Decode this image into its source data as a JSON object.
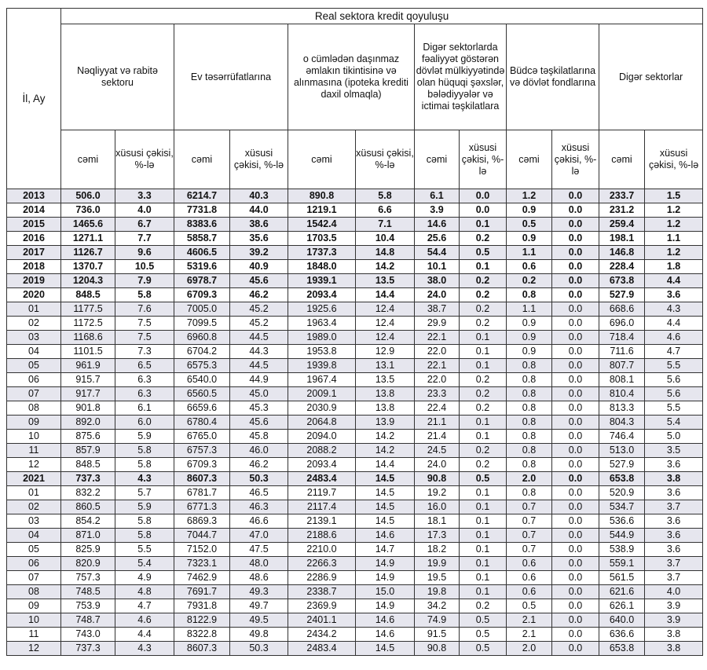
{
  "table": {
    "row_header": "İl, Ay",
    "title": "Real sektora kredit qoyuluşu",
    "groups": [
      "Nəqliyyat və rabitə sektoru",
      "Ev təsərrüfatlarına",
      "o cümlədən daşınmaz əmlakın tikintisinə və alınmasına (ipoteka krediti daxil olmaqla)",
      "Digər sektorlarda fəaliyyət göstərən dövlət mülkiyyətində olan hüquqi şəxslər, bələdiyyələr və ictimai təşkilatlara",
      "Büdcə təşkilatlarına və dövlət fondlarına",
      "Digər sektorlar"
    ],
    "sub_total": "cəmi",
    "sub_share": "xüsusi çəkisi, %-lə",
    "rows": [
      {
        "label": "2013",
        "bold": true,
        "values": [
          "506.0",
          "3.3",
          "6214.7",
          "40.3",
          "890.8",
          "5.8",
          "6.1",
          "0.0",
          "1.2",
          "0.0",
          "233.7",
          "1.5"
        ]
      },
      {
        "label": "2014",
        "bold": true,
        "values": [
          "736.0",
          "4.0",
          "7731.8",
          "44.0",
          "1219.1",
          "6.6",
          "3.9",
          "0.0",
          "0.9",
          "0.0",
          "231.2",
          "1.2"
        ]
      },
      {
        "label": "2015",
        "bold": true,
        "values": [
          "1465.6",
          "6.7",
          "8383.6",
          "38.6",
          "1542.4",
          "7.1",
          "14.6",
          "0.1",
          "0.5",
          "0.0",
          "259.4",
          "1.2"
        ]
      },
      {
        "label": "2016",
        "bold": true,
        "values": [
          "1271.1",
          "7.7",
          "5858.7",
          "35.6",
          "1703.5",
          "10.4",
          "25.6",
          "0.2",
          "0.9",
          "0.0",
          "198.1",
          "1.1"
        ]
      },
      {
        "label": "2017",
        "bold": true,
        "values": [
          "1126.7",
          "9.6",
          "4606.5",
          "39.2",
          "1737.3",
          "14.8",
          "54.4",
          "0.5",
          "1.1",
          "0.0",
          "146.8",
          "1.2"
        ]
      },
      {
        "label": "2018",
        "bold": true,
        "values": [
          "1370.7",
          "10.5",
          "5319.6",
          "40.9",
          "1848.0",
          "14.2",
          "10.1",
          "0.1",
          "0.6",
          "0.0",
          "228.4",
          "1.8"
        ]
      },
      {
        "label": "2019",
        "bold": true,
        "values": [
          "1204.3",
          "7.9",
          "6978.7",
          "45.6",
          "1939.1",
          "13.5",
          "38.0",
          "0.2",
          "0.2",
          "0.0",
          "673.8",
          "4.4"
        ]
      },
      {
        "label": "2020",
        "bold": true,
        "values": [
          "848.5",
          "5.8",
          "6709.3",
          "46.2",
          "2093.4",
          "14.4",
          "24.0",
          "0.2",
          "0.8",
          "0.0",
          "527.9",
          "3.6"
        ]
      },
      {
        "label": "01",
        "bold": false,
        "values": [
          "1177.5",
          "7.6",
          "7005.0",
          "45.2",
          "1925.6",
          "12.4",
          "38.7",
          "0.2",
          "1.1",
          "0.0",
          "668.6",
          "4.3"
        ]
      },
      {
        "label": "02",
        "bold": false,
        "values": [
          "1172.5",
          "7.5",
          "7099.5",
          "45.2",
          "1963.4",
          "12.4",
          "29.9",
          "0.2",
          "0.9",
          "0.0",
          "696.0",
          "4.4"
        ]
      },
      {
        "label": "03",
        "bold": false,
        "values": [
          "1168.6",
          "7.5",
          "6960.8",
          "44.5",
          "1989.0",
          "12.4",
          "22.1",
          "0.1",
          "0.9",
          "0.0",
          "718.4",
          "4.6"
        ]
      },
      {
        "label": "04",
        "bold": false,
        "values": [
          "1101.5",
          "7.3",
          "6704.2",
          "44.3",
          "1953.8",
          "12.9",
          "22.0",
          "0.1",
          "0.9",
          "0.0",
          "711.6",
          "4.7"
        ]
      },
      {
        "label": "05",
        "bold": false,
        "values": [
          "961.9",
          "6.5",
          "6575.3",
          "44.5",
          "1939.8",
          "13.1",
          "22.1",
          "0.1",
          "0.8",
          "0.0",
          "807.7",
          "5.5"
        ]
      },
      {
        "label": "06",
        "bold": false,
        "values": [
          "915.7",
          "6.3",
          "6540.0",
          "44.9",
          "1967.4",
          "13.5",
          "22.0",
          "0.2",
          "0.8",
          "0.0",
          "808.1",
          "5.6"
        ]
      },
      {
        "label": "07",
        "bold": false,
        "values": [
          "917.7",
          "6.3",
          "6560.5",
          "45.0",
          "2009.1",
          "13.8",
          "23.3",
          "0.2",
          "0.8",
          "0.0",
          "810.4",
          "5.6"
        ]
      },
      {
        "label": "08",
        "bold": false,
        "values": [
          "901.8",
          "6.1",
          "6659.6",
          "45.3",
          "2030.9",
          "13.8",
          "22.4",
          "0.2",
          "0.8",
          "0.0",
          "813.3",
          "5.5"
        ]
      },
      {
        "label": "09",
        "bold": false,
        "values": [
          "892.0",
          "6.0",
          "6780.4",
          "45.6",
          "2064.8",
          "13.9",
          "21.1",
          "0.1",
          "0.8",
          "0.0",
          "804.3",
          "5.4"
        ]
      },
      {
        "label": "10",
        "bold": false,
        "values": [
          "875.6",
          "5.9",
          "6765.0",
          "45.8",
          "2094.0",
          "14.2",
          "21.4",
          "0.1",
          "0.8",
          "0.0",
          "746.4",
          "5.0"
        ]
      },
      {
        "label": "11",
        "bold": false,
        "values": [
          "857.9",
          "5.8",
          "6757.3",
          "46.0",
          "2088.2",
          "14.2",
          "24.5",
          "0.2",
          "0.8",
          "0.0",
          "513.0",
          "3.5"
        ]
      },
      {
        "label": "12",
        "bold": false,
        "values": [
          "848.5",
          "5.8",
          "6709.3",
          "46.2",
          "2093.4",
          "14.4",
          "24.0",
          "0.2",
          "0.8",
          "0.0",
          "527.9",
          "3.6"
        ]
      },
      {
        "label": "2021",
        "bold": true,
        "values": [
          "737.3",
          "4.3",
          "8607.3",
          "50.3",
          "2483.4",
          "14.5",
          "90.8",
          "0.5",
          "2.0",
          "0.0",
          "653.8",
          "3.8"
        ]
      },
      {
        "label": "01",
        "bold": false,
        "values": [
          "832.2",
          "5.7",
          "6781.7",
          "46.5",
          "2119.7",
          "14.5",
          "19.2",
          "0.1",
          "0.8",
          "0.0",
          "520.9",
          "3.6"
        ]
      },
      {
        "label": "02",
        "bold": false,
        "values": [
          "860.5",
          "5.9",
          "6771.3",
          "46.3",
          "2117.4",
          "14.5",
          "16.0",
          "0.1",
          "0.7",
          "0.0",
          "534.7",
          "3.7"
        ]
      },
      {
        "label": "03",
        "bold": false,
        "values": [
          "854.2",
          "5.8",
          "6869.3",
          "46.6",
          "2139.1",
          "14.5",
          "18.1",
          "0.1",
          "0.7",
          "0.0",
          "536.6",
          "3.6"
        ]
      },
      {
        "label": "04",
        "bold": false,
        "values": [
          "871.0",
          "5.8",
          "7044.7",
          "47.0",
          "2188.6",
          "14.6",
          "17.3",
          "0.1",
          "0.7",
          "0.0",
          "544.9",
          "3.6"
        ]
      },
      {
        "label": "05",
        "bold": false,
        "values": [
          "825.9",
          "5.5",
          "7152.0",
          "47.5",
          "2210.0",
          "14.7",
          "18.2",
          "0.1",
          "0.7",
          "0.0",
          "538.9",
          "3.6"
        ]
      },
      {
        "label": "06",
        "bold": false,
        "values": [
          "820.9",
          "5.4",
          "7323.1",
          "48.0",
          "2266.3",
          "14.9",
          "19.9",
          "0.1",
          "0.6",
          "0.0",
          "559.1",
          "3.7"
        ]
      },
      {
        "label": "07",
        "bold": false,
        "values": [
          "757.3",
          "4.9",
          "7462.9",
          "48.6",
          "2286.9",
          "14.9",
          "19.5",
          "0.1",
          "0.6",
          "0.0",
          "561.5",
          "3.7"
        ]
      },
      {
        "label": "08",
        "bold": false,
        "values": [
          "748.5",
          "4.8",
          "7691.7",
          "49.3",
          "2338.7",
          "15.0",
          "19.8",
          "0.1",
          "0.6",
          "0.0",
          "621.6",
          "4.0"
        ]
      },
      {
        "label": "09",
        "bold": false,
        "values": [
          "753.9",
          "4.7",
          "7931.8",
          "49.7",
          "2369.9",
          "14.9",
          "34.2",
          "0.2",
          "0.5",
          "0.0",
          "626.1",
          "3.9"
        ]
      },
      {
        "label": "10",
        "bold": false,
        "values": [
          "748.7",
          "4.6",
          "8122.9",
          "49.5",
          "2401.1",
          "14.6",
          "74.9",
          "0.5",
          "2.1",
          "0.0",
          "640.0",
          "3.9"
        ]
      },
      {
        "label": "11",
        "bold": false,
        "values": [
          "743.0",
          "4.4",
          "8322.8",
          "49.8",
          "2434.2",
          "14.6",
          "91.5",
          "0.5",
          "2.1",
          "0.0",
          "636.6",
          "3.8"
        ]
      },
      {
        "label": "12",
        "bold": false,
        "values": [
          "737.3",
          "4.3",
          "8607.3",
          "50.3",
          "2483.4",
          "14.5",
          "90.8",
          "0.5",
          "2.0",
          "0.0",
          "653.8",
          "3.8"
        ]
      }
    ]
  },
  "colors": {
    "alt_row": "#e6e6ee",
    "border": "#333333"
  }
}
